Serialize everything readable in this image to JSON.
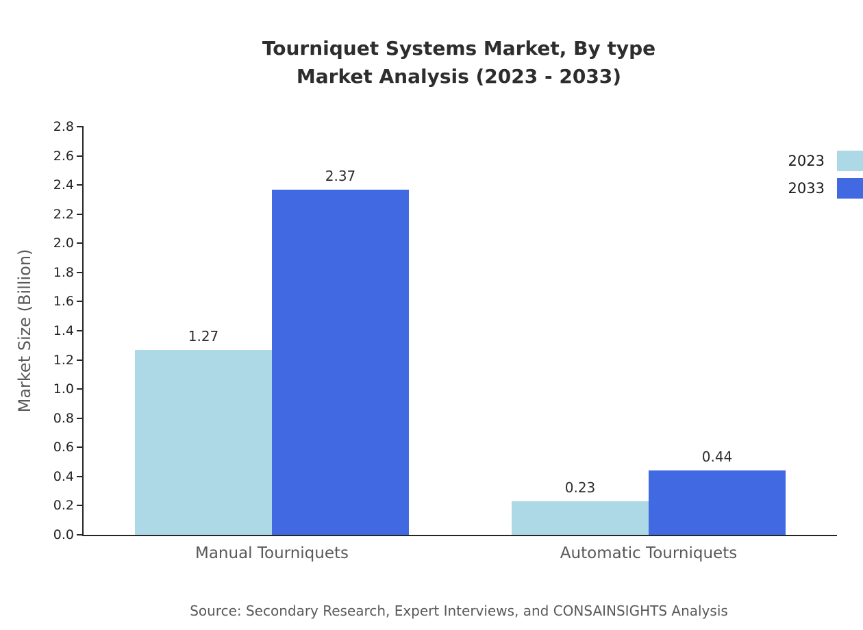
{
  "header": {
    "title_line1": "Tourniquet Systems Market, By type",
    "title_line2": "Market Analysis (2023 - 2033)"
  },
  "footer": {
    "source": "Source: Secondary Research, Expert Interviews, and CONSAINSIGHTS Analysis"
  },
  "chart_data": {
    "type": "bar",
    "title": "Tourniquet Systems Market, By type Market Analysis (2023 - 2033)",
    "categories": [
      "Manual Tourniquets",
      "Automatic Tourniquets"
    ],
    "series": [
      {
        "name": "2023",
        "color": "#add8e6",
        "values": [
          1.27,
          0.23
        ]
      },
      {
        "name": "2033",
        "color": "#4169e1",
        "values": [
          2.37,
          0.44
        ]
      }
    ],
    "xlabel": "",
    "ylabel": "Market Size (Billion)",
    "ylim": [
      0,
      2.8
    ],
    "ytick_step": 0.2,
    "grid": false,
    "legend_position": "top-right",
    "value_labels": {
      "Manual Tourniquets": {
        "2023": "1.27",
        "2033": "2.37"
      },
      "Automatic Tourniquets": {
        "2023": "0.23",
        "2033": "0.44"
      }
    }
  }
}
